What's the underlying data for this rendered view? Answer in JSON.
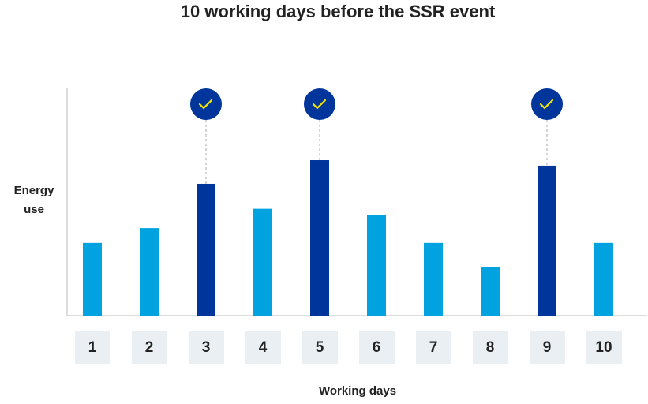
{
  "chart_data": {
    "type": "bar",
    "title": "10 working days before the SSR event",
    "x_label": "Working days",
    "y_label": "Energy use",
    "categories": [
      "1",
      "2",
      "3",
      "4",
      "5",
      "6",
      "7",
      "8",
      "9",
      "10"
    ],
    "values": [
      32,
      38.5,
      58,
      47,
      68.4,
      44.4,
      32,
      21.5,
      66,
      32
    ],
    "colors": [
      "#00a3e0",
      "#00a3e0",
      "#00369c",
      "#00a3e0",
      "#00369c",
      "#00a3e0",
      "#00a3e0",
      "#00a3e0",
      "#00369c",
      "#00a3e0"
    ],
    "highlight_color": "#00369c",
    "ylim": [
      0,
      100
    ]
  }
}
